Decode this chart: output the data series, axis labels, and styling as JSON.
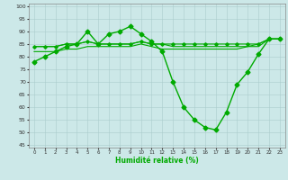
{
  "xlabel": "Humidité relative (%)",
  "bg_color": "#cce8e8",
  "grid_color": "#aacccc",
  "line_color": "#00aa00",
  "xlim": [
    -0.5,
    23.5
  ],
  "ylim": [
    44,
    101
  ],
  "yticks": [
    45,
    50,
    55,
    60,
    65,
    70,
    75,
    80,
    85,
    90,
    95,
    100
  ],
  "xticks": [
    0,
    1,
    2,
    3,
    4,
    5,
    6,
    7,
    8,
    9,
    10,
    11,
    12,
    13,
    14,
    15,
    16,
    17,
    18,
    19,
    20,
    21,
    22,
    23
  ],
  "series": [
    {
      "x": [
        0,
        1,
        2,
        3,
        4,
        5,
        6,
        7,
        8,
        9,
        10,
        11,
        12,
        13,
        14,
        15,
        16,
        17,
        18,
        19,
        20,
        21,
        22,
        23
      ],
      "y": [
        78,
        80,
        82,
        84,
        85,
        90,
        85,
        89,
        90,
        92,
        89,
        86,
        82,
        70,
        60,
        55,
        52,
        51,
        58,
        69,
        74,
        81,
        87,
        87
      ],
      "marker": "D",
      "markersize": 2.5,
      "linewidth": 1.0
    },
    {
      "x": [
        0,
        1,
        2,
        3,
        4,
        5,
        6,
        7,
        8,
        9,
        10,
        11,
        12,
        13,
        14,
        15,
        16,
        17,
        18,
        19,
        20,
        21,
        22,
        23
      ],
      "y": [
        84,
        84,
        84,
        85,
        85,
        86,
        85,
        85,
        85,
        85,
        86,
        85,
        85,
        85,
        85,
        85,
        85,
        85,
        85,
        85,
        85,
        85,
        87,
        87
      ],
      "marker": "D",
      "markersize": 1.8,
      "linewidth": 0.8
    },
    {
      "x": [
        0,
        1,
        2,
        3,
        4,
        5,
        6,
        7,
        8,
        9,
        10,
        11,
        12,
        13,
        14,
        15,
        16,
        17,
        18,
        19,
        20,
        21,
        22,
        23
      ],
      "y": [
        84,
        84,
        84,
        85,
        85,
        86,
        85,
        85,
        85,
        85,
        86,
        85,
        85,
        84,
        84,
        84,
        84,
        84,
        84,
        84,
        84,
        85,
        87,
        87
      ],
      "marker": null,
      "markersize": 0,
      "linewidth": 0.8
    },
    {
      "x": [
        0,
        1,
        2,
        3,
        4,
        5,
        6,
        7,
        8,
        9,
        10,
        11,
        12,
        13,
        14,
        15,
        16,
        17,
        18,
        19,
        20,
        21,
        22,
        23
      ],
      "y": [
        82,
        82,
        82,
        83,
        83,
        84,
        84,
        84,
        84,
        84,
        85,
        84,
        83,
        83,
        83,
        83,
        83,
        83,
        83,
        83,
        84,
        84,
        87,
        87
      ],
      "marker": null,
      "markersize": 0,
      "linewidth": 0.8
    }
  ]
}
